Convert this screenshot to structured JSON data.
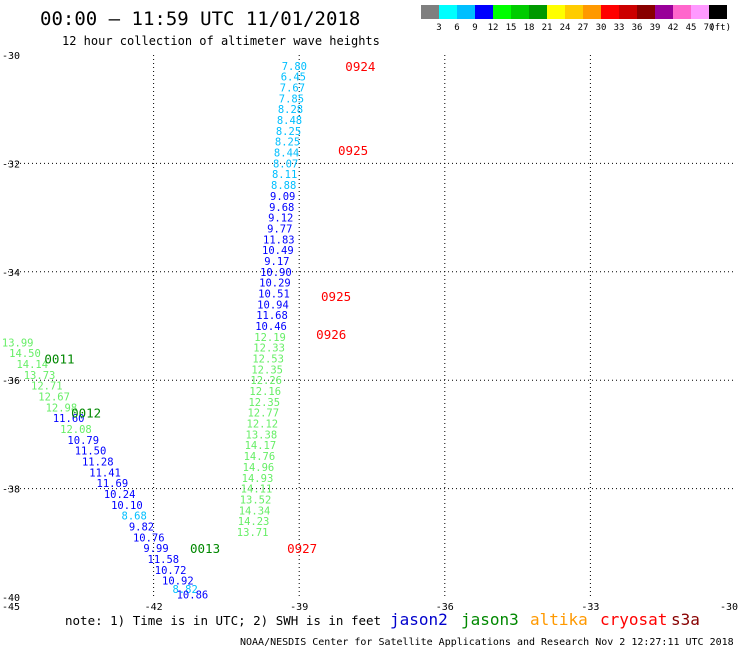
{
  "header": {
    "title": "00:00 – 11:59 UTC 11/01/2018",
    "subtitle": "12 hour collection of altimeter wave heights"
  },
  "colorbar": {
    "colors": [
      "#7f7f7f",
      "#00ffff",
      "#00bfff",
      "#0000ff",
      "#00ff00",
      "#00cc00",
      "#009900",
      "#ffff00",
      "#ffcc00",
      "#ff9900",
      "#ff0000",
      "#cc0000",
      "#880000",
      "#990099",
      "#ff66cc",
      "#ff99ff",
      "#000000"
    ],
    "labels": [
      "3",
      "6",
      "9",
      "12",
      "15",
      "18",
      "21",
      "24",
      "27",
      "30",
      "33",
      "36",
      "39",
      "42",
      "45",
      "70"
    ],
    "unit": "(ft)"
  },
  "footer": {
    "note": "note: 1) Time is in UTC; 2) SWH is in feet",
    "legend": [
      {
        "name": "jason2",
        "color": "#0000cc"
      },
      {
        "name": "jason3",
        "color": "#008800"
      },
      {
        "name": "altika",
        "color": "#ff9900"
      },
      {
        "name": "cryosat",
        "color": "#ff0000"
      },
      {
        "name": "s3a",
        "color": "#880000"
      }
    ],
    "credit": "NOAA/NESDIS Center for Satellite Applications and Research   Nov  2 12:27:11 UTC 2018"
  },
  "chart_data": {
    "type": "scatter",
    "title": "00:00 – 11:59 UTC 11/01/2018",
    "subtitle": "12 hour collection of altimeter wave heights",
    "xlabel": "",
    "ylabel": "",
    "xlim": [
      -45,
      -30
    ],
    "ylim": [
      -40,
      -30
    ],
    "xticks": [
      -45,
      -42,
      -39,
      -36,
      -33,
      -30
    ],
    "yticks": [
      -30,
      -32,
      -34,
      -36,
      -38,
      -40
    ],
    "grid": true,
    "legend_position": "bottom",
    "series": [
      {
        "name": "cryosat",
        "color": "#ff0000",
        "points": [
          {
            "x": -39.1,
            "y": -30.2,
            "v": "7.80",
            "c": "#00bfff"
          },
          {
            "x": -39.12,
            "y": -30.4,
            "v": "6.45",
            "c": "#00bfff"
          },
          {
            "x": -39.14,
            "y": -30.6,
            "v": "7.67",
            "c": "#00bfff"
          },
          {
            "x": -39.16,
            "y": -30.8,
            "v": "7.85",
            "c": "#00bfff"
          },
          {
            "x": -39.18,
            "y": -31.0,
            "v": "8.28",
            "c": "#00bfff"
          },
          {
            "x": -39.2,
            "y": -31.2,
            "v": "8.48",
            "c": "#00bfff"
          },
          {
            "x": -39.22,
            "y": -31.4,
            "v": "8.25",
            "c": "#00bfff"
          },
          {
            "x": -39.24,
            "y": -31.6,
            "v": "8.25",
            "c": "#00bfff"
          },
          {
            "x": -39.26,
            "y": -31.8,
            "v": "8.44",
            "c": "#00bfff"
          },
          {
            "x": -39.28,
            "y": -32.0,
            "v": "8.07",
            "c": "#00bfff"
          },
          {
            "x": -39.3,
            "y": -32.2,
            "v": "8.11",
            "c": "#00bfff"
          },
          {
            "x": -39.32,
            "y": -32.4,
            "v": "8.88",
            "c": "#00bfff"
          },
          {
            "x": -39.34,
            "y": -32.6,
            "v": "9.09",
            "c": "#0000ff"
          },
          {
            "x": -39.36,
            "y": -32.8,
            "v": "9.68",
            "c": "#0000ff"
          },
          {
            "x": -39.38,
            "y": -33.0,
            "v": "9.12",
            "c": "#0000ff"
          },
          {
            "x": -39.4,
            "y": -33.2,
            "v": "9.77",
            "c": "#0000ff"
          },
          {
            "x": -39.42,
            "y": -33.4,
            "v": "11.83",
            "c": "#0000ff"
          },
          {
            "x": -39.44,
            "y": -33.6,
            "v": "10.49",
            "c": "#0000ff"
          },
          {
            "x": -39.46,
            "y": -33.8,
            "v": "9.17",
            "c": "#0000ff"
          },
          {
            "x": -39.48,
            "y": -34.0,
            "v": "10.90",
            "c": "#0000ff"
          },
          {
            "x": -39.5,
            "y": -34.2,
            "v": "10.29",
            "c": "#0000ff"
          },
          {
            "x": -39.52,
            "y": -34.4,
            "v": "10.51",
            "c": "#0000ff"
          },
          {
            "x": -39.54,
            "y": -34.6,
            "v": "10.94",
            "c": "#0000ff"
          },
          {
            "x": -39.56,
            "y": -34.8,
            "v": "11.68",
            "c": "#0000ff"
          },
          {
            "x": -39.58,
            "y": -35.0,
            "v": "10.46",
            "c": "#0000ff"
          },
          {
            "x": -39.6,
            "y": -35.2,
            "v": "12.19",
            "c": "#66ee66"
          },
          {
            "x": -39.62,
            "y": -35.4,
            "v": "12.33",
            "c": "#66ee66"
          },
          {
            "x": -39.64,
            "y": -35.6,
            "v": "12.53",
            "c": "#66ee66"
          },
          {
            "x": -39.66,
            "y": -35.8,
            "v": "12.35",
            "c": "#66ee66"
          },
          {
            "x": -39.68,
            "y": -36.0,
            "v": "12.26",
            "c": "#66ee66"
          },
          {
            "x": -39.7,
            "y": -36.2,
            "v": "12.16",
            "c": "#66ee66"
          },
          {
            "x": -39.72,
            "y": -36.4,
            "v": "12.35",
            "c": "#66ee66"
          },
          {
            "x": -39.74,
            "y": -36.6,
            "v": "12.77",
            "c": "#66ee66"
          },
          {
            "x": -39.76,
            "y": -36.8,
            "v": "12.12",
            "c": "#66ee66"
          },
          {
            "x": -39.78,
            "y": -37.0,
            "v": "13.38",
            "c": "#66ee66"
          },
          {
            "x": -39.8,
            "y": -37.2,
            "v": "14.17",
            "c": "#66ee66"
          },
          {
            "x": -39.82,
            "y": -37.4,
            "v": "14.76",
            "c": "#66ee66"
          },
          {
            "x": -39.84,
            "y": -37.6,
            "v": "14.96",
            "c": "#66ee66"
          },
          {
            "x": -39.86,
            "y": -37.8,
            "v": "14.93",
            "c": "#66ee66"
          },
          {
            "x": -39.88,
            "y": -38.0,
            "v": "14.11",
            "c": "#66ee66"
          },
          {
            "x": -39.9,
            "y": -38.2,
            "v": "13.52",
            "c": "#66ee66"
          },
          {
            "x": -39.92,
            "y": -38.4,
            "v": "14.34",
            "c": "#66ee66"
          },
          {
            "x": -39.94,
            "y": -38.6,
            "v": "14.23",
            "c": "#66ee66"
          },
          {
            "x": -39.96,
            "y": -38.8,
            "v": "13.71",
            "c": "#66ee66"
          }
        ]
      },
      {
        "name": "jason3",
        "color": "#008800",
        "points": [
          {
            "x": -44.8,
            "y": -35.3,
            "v": "13.99",
            "c": "#66ee66"
          },
          {
            "x": -44.65,
            "y": -35.5,
            "v": "14.50",
            "c": "#66ee66"
          },
          {
            "x": -44.5,
            "y": -35.7,
            "v": "14.14",
            "c": "#66ee66"
          },
          {
            "x": -44.35,
            "y": -35.9,
            "v": "13.73",
            "c": "#66ee66"
          },
          {
            "x": -44.2,
            "y": -36.1,
            "v": "12.71",
            "c": "#66ee66"
          },
          {
            "x": -44.05,
            "y": -36.3,
            "v": "12.67",
            "c": "#66ee66"
          },
          {
            "x": -43.9,
            "y": -36.5,
            "v": "12.98",
            "c": "#66ee66"
          },
          {
            "x": -43.75,
            "y": -36.7,
            "v": "11.60",
            "c": "#0000ff"
          },
          {
            "x": -43.6,
            "y": -36.9,
            "v": "12.08",
            "c": "#66ee66"
          },
          {
            "x": -43.45,
            "y": -37.1,
            "v": "10.79",
            "c": "#0000ff"
          },
          {
            "x": -43.3,
            "y": -37.3,
            "v": "11.50",
            "c": "#0000ff"
          },
          {
            "x": -43.15,
            "y": -37.5,
            "v": "11.28",
            "c": "#0000ff"
          },
          {
            "x": -43.0,
            "y": -37.7,
            "v": "11.41",
            "c": "#0000ff"
          },
          {
            "x": -42.85,
            "y": -37.9,
            "v": "11.69",
            "c": "#0000ff"
          },
          {
            "x": -42.7,
            "y": -38.1,
            "v": "10.24",
            "c": "#0000ff"
          },
          {
            "x": -42.55,
            "y": -38.3,
            "v": "10.10",
            "c": "#0000ff"
          },
          {
            "x": -42.4,
            "y": -38.5,
            "v": "8.68",
            "c": "#00bfff"
          },
          {
            "x": -42.25,
            "y": -38.7,
            "v": "9.82",
            "c": "#0000ff"
          },
          {
            "x": -42.1,
            "y": -38.9,
            "v": "10.76",
            "c": "#0000ff"
          },
          {
            "x": -41.95,
            "y": -39.1,
            "v": "9.99",
            "c": "#0000ff"
          },
          {
            "x": -41.8,
            "y": -39.3,
            "v": "11.58",
            "c": "#0000ff"
          },
          {
            "x": -41.65,
            "y": -39.5,
            "v": "10.72",
            "c": "#0000ff"
          },
          {
            "x": -41.5,
            "y": -39.7,
            "v": "10.92",
            "c": "#0000ff"
          },
          {
            "x": -41.35,
            "y": -39.85,
            "v": "8.82",
            "c": "#00bfff"
          },
          {
            "x": -41.2,
            "y": -39.95,
            "v": "10.86",
            "c": "#0000ff"
          }
        ]
      }
    ],
    "annotations": [
      {
        "text": "0924",
        "x": -38.05,
        "y": -30.2,
        "color": "#ff0000"
      },
      {
        "text": "0925",
        "x": -38.2,
        "y": -31.75,
        "color": "#ff0000"
      },
      {
        "text": "0925",
        "x": -38.55,
        "y": -34.45,
        "color": "#ff0000"
      },
      {
        "text": "0926",
        "x": -38.65,
        "y": -35.15,
        "color": "#ff0000"
      },
      {
        "text": "0927",
        "x": -39.25,
        "y": -39.1,
        "color": "#ff0000"
      },
      {
        "text": "0011",
        "x": -44.25,
        "y": -35.6,
        "color": "#008800"
      },
      {
        "text": "0012",
        "x": -43.7,
        "y": -36.6,
        "color": "#008800"
      },
      {
        "text": "0013",
        "x": -41.25,
        "y": -39.1,
        "color": "#008800"
      }
    ]
  }
}
